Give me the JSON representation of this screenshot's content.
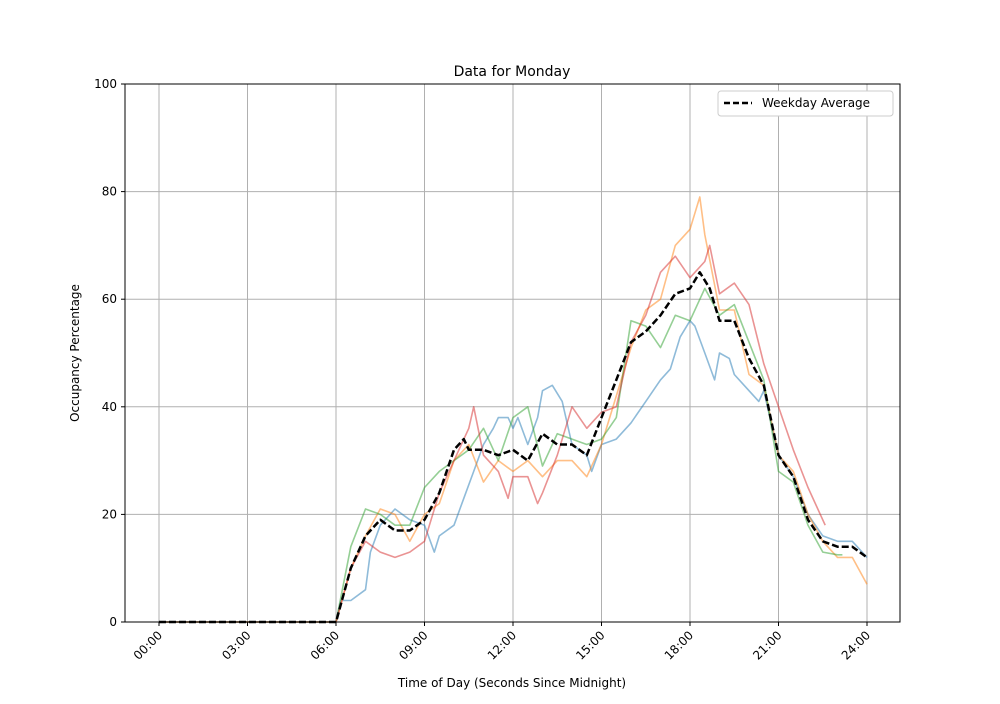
{
  "chart_data": {
    "type": "line",
    "title": "Data for Monday",
    "xlabel": "Time of Day (Seconds Since Midnight)",
    "ylabel": "Occupancy Percentage",
    "ylim": [
      0,
      100
    ],
    "xlim": [
      "00:00",
      "24:00"
    ],
    "grid": true,
    "legend_position": "top-right",
    "x_ticks": [
      "00:00",
      "03:00",
      "06:00",
      "09:00",
      "12:00",
      "15:00",
      "18:00",
      "21:00",
      "24:00"
    ],
    "y_ticks": [
      "0",
      "20",
      "40",
      "60",
      "80",
      "100"
    ],
    "series": [
      {
        "color": "#1f77b4",
        "alpha": 0.5,
        "style": "solid",
        "x": [
          "00:00",
          "06:00",
          "06:10",
          "06:30",
          "07:00",
          "07:10",
          "07:30",
          "08:00",
          "08:30",
          "09:00",
          "09:20",
          "09:30",
          "10:00",
          "10:20",
          "10:40",
          "11:00",
          "11:20",
          "11:30",
          "11:50",
          "12:00",
          "12:10",
          "12:30",
          "12:50",
          "13:00",
          "13:20",
          "13:40",
          "14:00",
          "14:30",
          "14:40",
          "15:00",
          "15:30",
          "16:00",
          "16:30",
          "17:00",
          "17:20",
          "17:40",
          "18:00",
          "18:10",
          "18:30",
          "18:50",
          "19:00",
          "19:20",
          "19:30",
          "20:00",
          "20:20",
          "20:30",
          "21:00",
          "21:30",
          "22:00",
          "22:30",
          "23:00",
          "23:30",
          "24:00"
        ],
        "y": [
          0,
          0,
          4,
          4,
          6,
          13,
          18,
          21,
          19,
          18,
          13,
          16,
          18,
          23,
          28,
          33,
          36,
          38,
          38,
          36,
          38,
          33,
          38,
          43,
          44,
          41,
          33,
          31,
          28,
          33,
          34,
          37,
          41,
          45,
          47,
          53,
          56,
          55,
          50,
          45,
          50,
          49,
          46,
          43,
          41,
          43,
          31,
          27,
          20,
          16,
          15,
          15,
          12
        ]
      },
      {
        "color": "#ff7f0e",
        "alpha": 0.5,
        "style": "solid",
        "x": [
          "00:00",
          "06:00",
          "06:30",
          "07:00",
          "07:30",
          "08:00",
          "08:30",
          "09:00",
          "09:30",
          "10:00",
          "10:30",
          "11:00",
          "11:30",
          "12:00",
          "12:30",
          "13:00",
          "13:30",
          "14:00",
          "14:30",
          "15:00",
          "15:30",
          "16:00",
          "16:30",
          "17:00",
          "17:30",
          "18:00",
          "18:20",
          "18:30",
          "19:00",
          "19:30",
          "20:00",
          "20:30",
          "21:00",
          "21:30",
          "22:00",
          "22:30",
          "23:00",
          "23:30",
          "24:00"
        ],
        "y": [
          0,
          0,
          10,
          16,
          21,
          20,
          15,
          20,
          22,
          30,
          33,
          26,
          30,
          28,
          30,
          27,
          30,
          30,
          27,
          33,
          42,
          51,
          58,
          60,
          70,
          73,
          79,
          72,
          58,
          58,
          46,
          44,
          31,
          28,
          20,
          15,
          12,
          12,
          7
        ]
      },
      {
        "color": "#2ca02c",
        "alpha": 0.5,
        "style": "solid",
        "x": [
          "00:00",
          "06:00",
          "06:30",
          "07:00",
          "07:30",
          "08:00",
          "08:30",
          "09:00",
          "09:30",
          "10:00",
          "10:30",
          "11:00",
          "11:30",
          "12:00",
          "12:30",
          "13:00",
          "13:30",
          "14:00",
          "14:30",
          "15:00",
          "15:30",
          "16:00",
          "16:30",
          "17:00",
          "17:30",
          "18:00",
          "18:30",
          "19:00",
          "19:30",
          "20:00",
          "20:30",
          "21:00",
          "21:30",
          "22:00",
          "22:30",
          "23:00",
          "23:10"
        ],
        "y": [
          0,
          0,
          14,
          21,
          20,
          18,
          18,
          25,
          28,
          30,
          32,
          36,
          30,
          38,
          40,
          29,
          35,
          34,
          33,
          34,
          38,
          56,
          55,
          51,
          57,
          56,
          62,
          57,
          59,
          52,
          45,
          28,
          26,
          18,
          13,
          12.5,
          12.5
        ]
      },
      {
        "color": "#d62728",
        "alpha": 0.5,
        "style": "solid",
        "x": [
          "00:00",
          "06:00",
          "06:30",
          "07:00",
          "07:30",
          "08:00",
          "08:30",
          "09:00",
          "09:30",
          "10:00",
          "10:30",
          "10:40",
          "11:00",
          "11:30",
          "11:50",
          "12:00",
          "12:30",
          "12:50",
          "13:00",
          "13:30",
          "14:00",
          "14:30",
          "15:00",
          "15:30",
          "16:00",
          "16:30",
          "17:00",
          "17:30",
          "18:00",
          "18:30",
          "18:40",
          "19:00",
          "19:30",
          "20:00",
          "20:30",
          "21:00",
          "21:30",
          "22:00",
          "22:35"
        ],
        "y": [
          0,
          0,
          10,
          15,
          13,
          12,
          13,
          15,
          24,
          30,
          36,
          40,
          31,
          28,
          23,
          27,
          27,
          22,
          24,
          31,
          40,
          36,
          39,
          40,
          52,
          57,
          65,
          68,
          64,
          67,
          70,
          61,
          63,
          59,
          48,
          40,
          32,
          25,
          18
        ]
      },
      {
        "name": "Weekday Average",
        "color": "#000000",
        "alpha": 1,
        "style": "dashed",
        "x": [
          "00:00",
          "06:00",
          "06:30",
          "07:00",
          "07:30",
          "08:00",
          "08:30",
          "09:00",
          "09:30",
          "10:00",
          "10:20",
          "10:30",
          "11:00",
          "11:30",
          "12:00",
          "12:30",
          "13:00",
          "13:30",
          "14:00",
          "14:30",
          "15:00",
          "15:30",
          "16:00",
          "16:30",
          "17:00",
          "17:30",
          "18:00",
          "18:20",
          "18:40",
          "19:00",
          "19:30",
          "20:00",
          "20:30",
          "21:00",
          "21:30",
          "22:00",
          "22:30",
          "23:00",
          "23:30",
          "24:00"
        ],
        "y": [
          0,
          0,
          10,
          16,
          19,
          17,
          17,
          19,
          24,
          32,
          34,
          32,
          32,
          31,
          32,
          30,
          35,
          33,
          33,
          31,
          38,
          45,
          52,
          54,
          57,
          61,
          62,
          65,
          62,
          56,
          56,
          49,
          44,
          31,
          27,
          19,
          15,
          14,
          14,
          12
        ]
      }
    ],
    "legend": [
      "Weekday Average"
    ]
  }
}
